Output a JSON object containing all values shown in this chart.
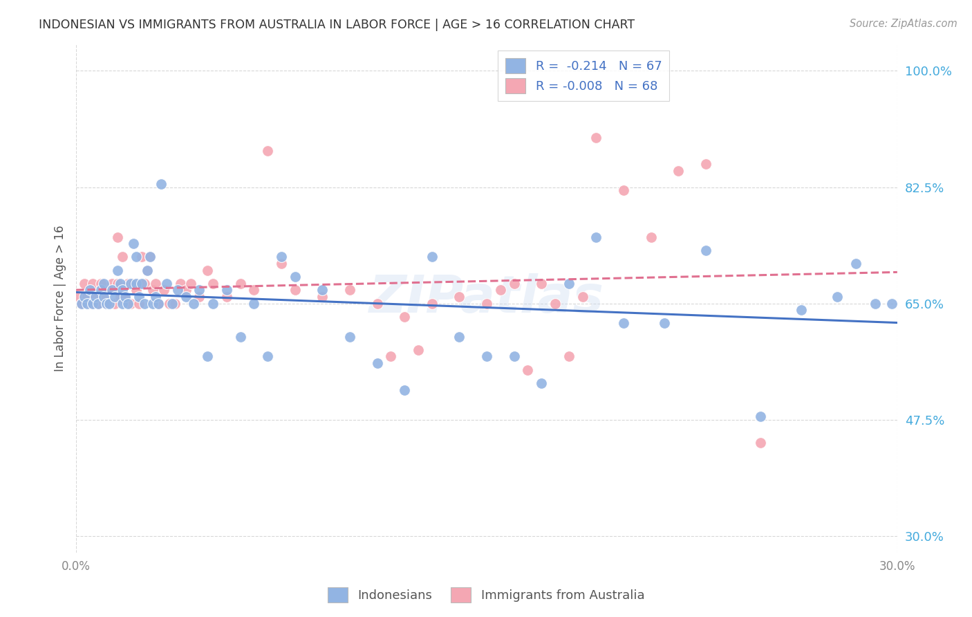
{
  "title": "INDONESIAN VS IMMIGRANTS FROM AUSTRALIA IN LABOR FORCE | AGE > 16 CORRELATION CHART",
  "source": "Source: ZipAtlas.com",
  "ylabel": "In Labor Force | Age > 16",
  "xlim": [
    0.0,
    0.3
  ],
  "ylim": [
    0.275,
    1.04
  ],
  "yticks": [
    0.3,
    0.475,
    0.65,
    0.825,
    1.0
  ],
  "ytick_labels": [
    "30.0%",
    "47.5%",
    "65.0%",
    "82.5%",
    "100.0%"
  ],
  "r_indonesian": -0.214,
  "n_indonesian": 67,
  "r_australia": -0.008,
  "n_australia": 68,
  "color_indonesian": "#92b4e3",
  "color_australia": "#f4a7b3",
  "color_line_blue": "#4472c4",
  "color_line_pink": "#e07090",
  "color_text_blue": "#4472c4",
  "watermark": "ZIPatlas",
  "indonesian_x": [
    0.002,
    0.003,
    0.004,
    0.005,
    0.006,
    0.007,
    0.008,
    0.009,
    0.01,
    0.01,
    0.011,
    0.012,
    0.013,
    0.014,
    0.015,
    0.016,
    0.017,
    0.017,
    0.018,
    0.019,
    0.02,
    0.021,
    0.022,
    0.022,
    0.023,
    0.024,
    0.025,
    0.026,
    0.027,
    0.028,
    0.029,
    0.03,
    0.031,
    0.033,
    0.035,
    0.037,
    0.04,
    0.043,
    0.045,
    0.048,
    0.05,
    0.055,
    0.06,
    0.065,
    0.07,
    0.075,
    0.08,
    0.09,
    0.1,
    0.11,
    0.12,
    0.13,
    0.14,
    0.15,
    0.16,
    0.17,
    0.18,
    0.19,
    0.2,
    0.215,
    0.23,
    0.25,
    0.265,
    0.278,
    0.285,
    0.292,
    0.298
  ],
  "indonesian_y": [
    0.65,
    0.66,
    0.65,
    0.67,
    0.65,
    0.66,
    0.65,
    0.67,
    0.66,
    0.68,
    0.65,
    0.65,
    0.67,
    0.66,
    0.7,
    0.68,
    0.65,
    0.67,
    0.66,
    0.65,
    0.68,
    0.74,
    0.72,
    0.68,
    0.66,
    0.68,
    0.65,
    0.7,
    0.72,
    0.65,
    0.66,
    0.65,
    0.83,
    0.68,
    0.65,
    0.67,
    0.66,
    0.65,
    0.67,
    0.57,
    0.65,
    0.67,
    0.6,
    0.65,
    0.57,
    0.72,
    0.69,
    0.67,
    0.6,
    0.56,
    0.52,
    0.72,
    0.6,
    0.57,
    0.57,
    0.53,
    0.68,
    0.75,
    0.62,
    0.62,
    0.73,
    0.48,
    0.64,
    0.66,
    0.71,
    0.65,
    0.65
  ],
  "australia_x": [
    0.001,
    0.002,
    0.003,
    0.004,
    0.005,
    0.006,
    0.007,
    0.008,
    0.009,
    0.01,
    0.011,
    0.012,
    0.013,
    0.014,
    0.015,
    0.015,
    0.016,
    0.017,
    0.018,
    0.019,
    0.02,
    0.021,
    0.022,
    0.023,
    0.024,
    0.025,
    0.026,
    0.027,
    0.028,
    0.029,
    0.03,
    0.032,
    0.034,
    0.036,
    0.038,
    0.04,
    0.042,
    0.045,
    0.048,
    0.05,
    0.055,
    0.06,
    0.065,
    0.07,
    0.075,
    0.08,
    0.09,
    0.1,
    0.11,
    0.115,
    0.12,
    0.125,
    0.13,
    0.14,
    0.15,
    0.155,
    0.16,
    0.165,
    0.17,
    0.175,
    0.18,
    0.185,
    0.19,
    0.2,
    0.21,
    0.22,
    0.23,
    0.25
  ],
  "australia_y": [
    0.66,
    0.65,
    0.68,
    0.66,
    0.65,
    0.68,
    0.66,
    0.65,
    0.68,
    0.66,
    0.65,
    0.67,
    0.68,
    0.65,
    0.68,
    0.75,
    0.66,
    0.72,
    0.66,
    0.68,
    0.65,
    0.68,
    0.67,
    0.65,
    0.72,
    0.68,
    0.7,
    0.72,
    0.67,
    0.68,
    0.65,
    0.67,
    0.65,
    0.65,
    0.68,
    0.67,
    0.68,
    0.66,
    0.7,
    0.68,
    0.66,
    0.68,
    0.67,
    0.88,
    0.71,
    0.67,
    0.66,
    0.67,
    0.65,
    0.57,
    0.63,
    0.58,
    0.65,
    0.66,
    0.65,
    0.67,
    0.68,
    0.55,
    0.68,
    0.65,
    0.57,
    0.66,
    0.9,
    0.82,
    0.75,
    0.85,
    0.86,
    0.44
  ],
  "bg_color": "#ffffff",
  "grid_color": "#d8d8d8"
}
